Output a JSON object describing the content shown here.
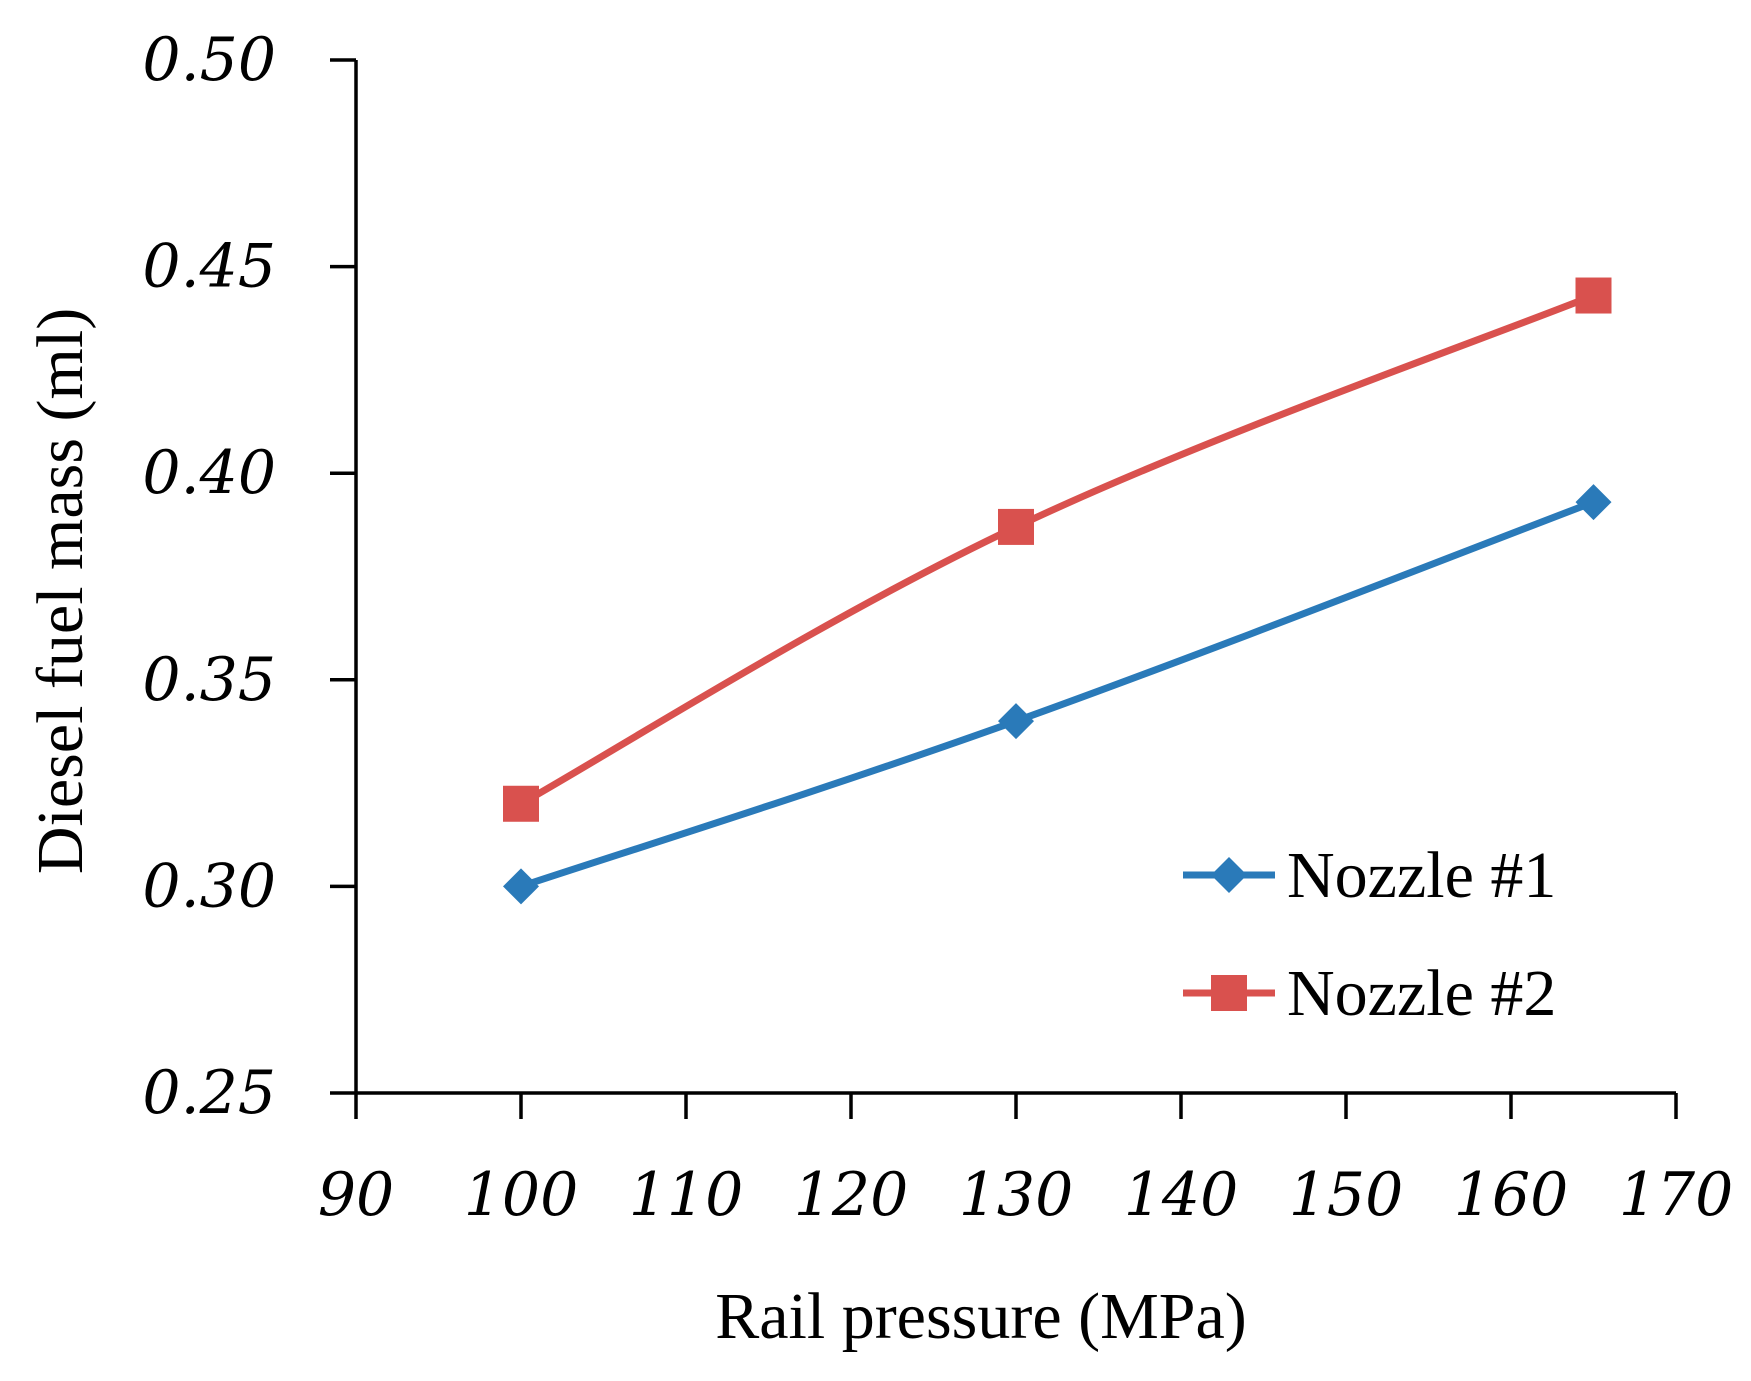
{
  "chart_data": {
    "type": "line",
    "title": "",
    "xlabel": "Rail pressure (MPa)",
    "ylabel": "Diesel fuel mass  (ml)",
    "xlim": [
      90,
      170
    ],
    "ylim": [
      0.25,
      0.5
    ],
    "xticks": [
      90,
      100,
      110,
      120,
      130,
      140,
      150,
      160,
      170
    ],
    "yticks": [
      0.25,
      0.3,
      0.35,
      0.4,
      0.45,
      0.5
    ],
    "xtick_labels": [
      "90",
      "100",
      "110",
      "120",
      "130",
      "140",
      "150",
      "160",
      "170"
    ],
    "ytick_labels": [
      "0.25",
      "0.30",
      "0.35",
      "0.40",
      "0.45",
      "0.50"
    ],
    "grid": false,
    "legend_position": "bottom-right",
    "series": [
      {
        "name": "Nozzle #1",
        "marker": "diamond",
        "color": "#2A7AB9",
        "x": [
          100,
          130,
          165
        ],
        "y": [
          0.3,
          0.34,
          0.393
        ]
      },
      {
        "name": "Nozzle #2",
        "marker": "square",
        "color": "#D9514E",
        "x": [
          100,
          130,
          165
        ],
        "y": [
          0.32,
          0.387,
          0.443
        ]
      }
    ]
  }
}
